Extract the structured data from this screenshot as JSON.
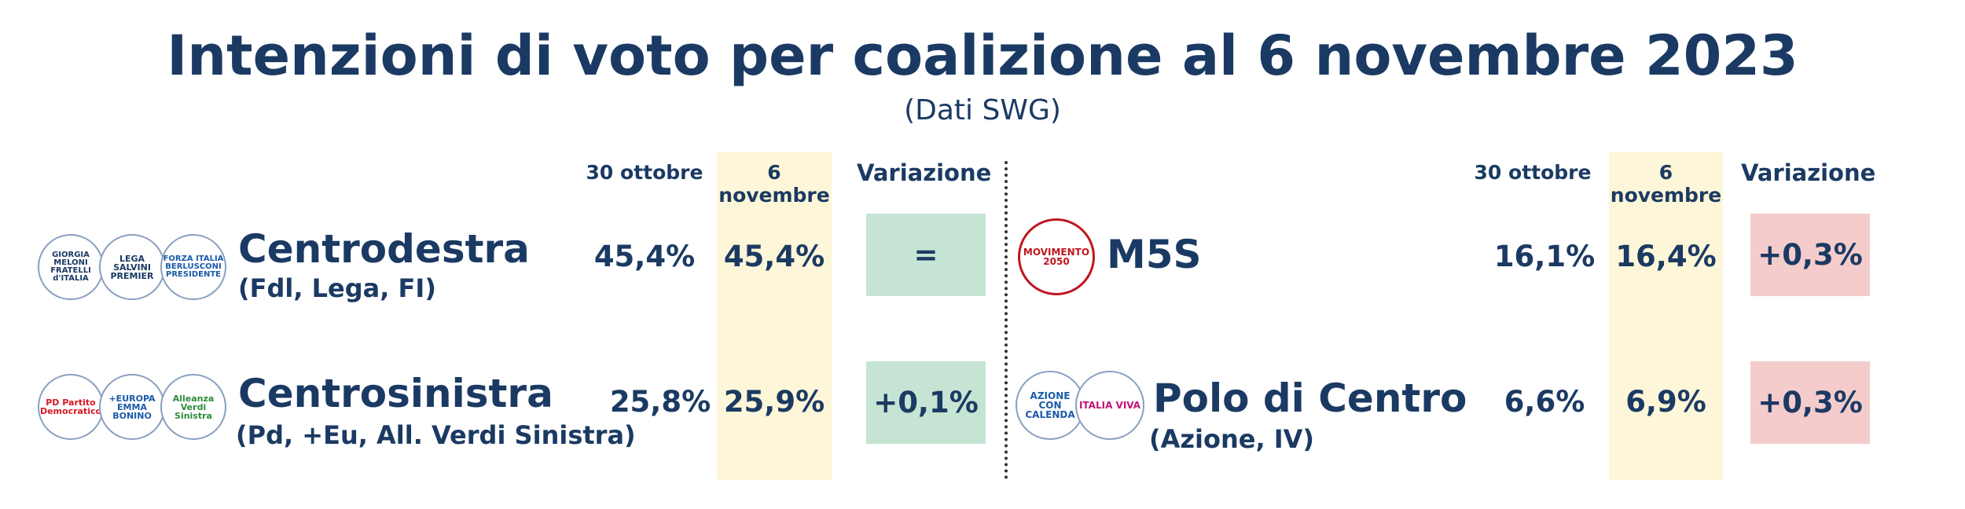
{
  "title": "Intenzioni di voto per coalizione al 6 novembre 2023",
  "subtitle": "(Dati SWG)",
  "headers": {
    "prev": "30 ottobre",
    "curr": "6 novembre",
    "change": "Variazione"
  },
  "colors": {
    "text": "#1b3a63",
    "highlight": "#fdf6d8",
    "positive_box": "#c5e4d3",
    "negative_box": "#f4cccc"
  },
  "logos": {
    "meloni": "GIORGIA MELONI FRATELLI d'ITALIA",
    "lega": "LEGA SALVINI PREMIER",
    "fi": "FORZA ITALIA BERLUSCONI PRESIDENTE",
    "pd": "PD Partito Democratico",
    "europa": "+EUROPA EMMA BONINO",
    "avs": "Alleanza Verdi Sinistra",
    "m5s": "MOVIMENTO 2050",
    "azione": "AZIONE CON CALENDA",
    "iv": "ITALIA VIVA"
  },
  "chart_data": {
    "type": "table",
    "columns": [
      "30 ottobre",
      "6 novembre",
      "Variazione"
    ],
    "rows": [
      {
        "name": "Centrodestra",
        "sub": "(Fdl, Lega, FI)",
        "prev": "45,4%",
        "curr": "45,4%",
        "change": "="
      },
      {
        "name": "Centrosinistra",
        "sub": "(Pd, +Eu, All. Verdi Sinistra)",
        "prev": "25,8%",
        "curr": "25,9%",
        "change": "+0,1%"
      },
      {
        "name": "M5S",
        "sub": "",
        "prev": "16,1%",
        "curr": "16,4%",
        "change": "+0,3%"
      },
      {
        "name": "Polo di Centro",
        "sub": "(Azione, IV)",
        "prev": "6,6%",
        "curr": "6,9%",
        "change": "+0,3%"
      }
    ]
  }
}
